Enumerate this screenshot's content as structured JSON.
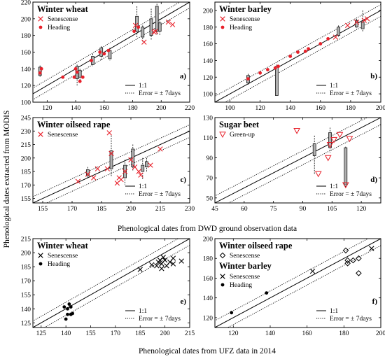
{
  "figure": {
    "xlabel_top": "Phenological dates from DWD ground observation data",
    "xlabel_bottom": "Phenological dates from UFZ data in 2014",
    "ylabel": "Phenological dates extracted from MODIS"
  },
  "legend_lines": {
    "one_to_one": "1:1",
    "error": "Error = ± 7days"
  },
  "colors": {
    "red": "#e8202a",
    "black": "#000000",
    "gray": "#b0b0b0"
  },
  "chart_data": [
    {
      "panel": "a)",
      "title": "Winter wheat",
      "type": "scatter",
      "xlim": [
        110,
        220
      ],
      "ylim": [
        100,
        220
      ],
      "xticks": [
        120,
        140,
        160,
        180,
        200,
        220
      ],
      "yticks": [
        100,
        120,
        140,
        160,
        180,
        200,
        220
      ],
      "error_days": 7,
      "series": [
        {
          "name": "Senescense",
          "marker": "x",
          "color": "#e8202a",
          "points": [
            [
              182,
              192
            ],
            [
              188,
              172
            ],
            [
              195,
              184
            ],
            [
              205,
              196
            ],
            [
              208,
              193
            ],
            [
              196,
              185
            ]
          ]
        },
        {
          "name": "Heading",
          "marker": "dot",
          "color": "#e8202a",
          "points": [
            [
              115,
              135
            ],
            [
              116,
              140
            ],
            [
              131,
              130
            ],
            [
              139,
              130
            ],
            [
              140,
              140
            ],
            [
              141,
              136
            ],
            [
              143,
              125
            ],
            [
              145,
              130
            ],
            [
              151,
              150
            ],
            [
              157,
              160
            ],
            [
              160,
              158
            ],
            [
              163,
              162
            ],
            [
              181,
              185
            ],
            [
              184,
              190
            ]
          ]
        }
      ],
      "boxes": [
        {
          "x": 115,
          "q1": 132,
          "q3": 142,
          "lo": 130,
          "hi": 144
        },
        {
          "x": 141,
          "q1": 128,
          "q3": 143,
          "lo": 120,
          "hi": 145
        },
        {
          "x": 143,
          "q1": 130,
          "q3": 138,
          "lo": 125,
          "hi": 140
        },
        {
          "x": 152,
          "q1": 145,
          "q3": 155,
          "lo": 143,
          "hi": 158
        },
        {
          "x": 158,
          "q1": 155,
          "q3": 165,
          "lo": 150,
          "hi": 167
        },
        {
          "x": 164,
          "q1": 152,
          "q3": 162,
          "lo": 150,
          "hi": 165
        },
        {
          "x": 183,
          "q1": 185,
          "q3": 203,
          "lo": 178,
          "hi": 215
        },
        {
          "x": 187,
          "q1": 178,
          "q3": 190,
          "lo": 172,
          "hi": 192
        },
        {
          "x": 193,
          "q1": 180,
          "q3": 200,
          "lo": 175,
          "hi": 212
        },
        {
          "x": 197,
          "q1": 185,
          "q3": 215,
          "lo": 180,
          "hi": 218
        },
        {
          "x": 199,
          "q1": 185,
          "q3": 195,
          "lo": 180,
          "hi": 200
        }
      ]
    },
    {
      "panel": "b)",
      "title": "Winter barley",
      "type": "scatter",
      "xlim": [
        90,
        200
      ],
      "ylim": [
        90,
        210
      ],
      "xticks": [
        100,
        120,
        140,
        160,
        180,
        200
      ],
      "yticks": [
        100,
        120,
        140,
        160,
        180,
        200
      ],
      "error_days": 7,
      "series": [
        {
          "name": "Senescense",
          "marker": "x",
          "color": "#e8202a",
          "points": [
            [
              170,
              168
            ],
            [
              178,
              182
            ],
            [
              184,
              186
            ],
            [
              189,
              188
            ],
            [
              191,
              190
            ]
          ]
        },
        {
          "name": "Heading",
          "marker": "dot",
          "color": "#e8202a",
          "points": [
            [
              112,
              118
            ],
            [
              120,
              125
            ],
            [
              125,
              129
            ],
            [
              130,
              131
            ],
            [
              132,
              133
            ],
            [
              140,
              145
            ],
            [
              145,
              150
            ],
            [
              150,
              151
            ],
            [
              152,
              154
            ],
            [
              160,
              160
            ],
            [
              165,
              166
            ]
          ]
        }
      ],
      "boxes": [
        {
          "x": 112,
          "q1": 113,
          "q3": 122,
          "lo": 111,
          "hi": 124
        },
        {
          "x": 131,
          "q1": 98,
          "q3": 133,
          "lo": 97,
          "hi": 135
        },
        {
          "x": 172,
          "q1": 170,
          "q3": 180,
          "lo": 168,
          "hi": 182
        },
        {
          "x": 184,
          "q1": 180,
          "q3": 188,
          "lo": 178,
          "hi": 190
        },
        {
          "x": 188,
          "q1": 178,
          "q3": 186,
          "lo": 175,
          "hi": 200
        }
      ]
    },
    {
      "panel": "c)",
      "title": "Winter oilseed rape",
      "type": "scatter",
      "xlim": [
        150,
        230
      ],
      "ylim": [
        150,
        245
      ],
      "xticks": [
        155,
        170,
        185,
        200,
        215,
        230
      ],
      "yticks": [
        155,
        170,
        185,
        200,
        215,
        230,
        245
      ],
      "error_days": 7,
      "series": [
        {
          "name": "Senescense",
          "marker": "x",
          "color": "#e8202a",
          "points": [
            [
              173,
              174
            ],
            [
              178,
              182
            ],
            [
              181,
              178
            ],
            [
              183,
              188
            ],
            [
              188,
              188
            ],
            [
              189,
              228
            ],
            [
              190,
              205
            ],
            [
              193,
              172
            ],
            [
              194,
              178
            ],
            [
              195,
              176
            ],
            [
              197,
              185
            ],
            [
              200,
              198
            ],
            [
              202,
              190
            ],
            [
              204,
              185
            ],
            [
              205,
              181
            ],
            [
              210,
              192
            ],
            [
              215,
              210
            ]
          ]
        }
      ],
      "boxes": [
        {
          "x": 178,
          "q1": 180,
          "q3": 187,
          "lo": 178,
          "hi": 190
        },
        {
          "x": 190,
          "q1": 188,
          "q3": 208,
          "lo": 180,
          "hi": 225
        },
        {
          "x": 197,
          "q1": 178,
          "q3": 192,
          "lo": 170,
          "hi": 198
        },
        {
          "x": 201,
          "q1": 190,
          "q3": 210,
          "lo": 185,
          "hi": 215
        },
        {
          "x": 206,
          "q1": 185,
          "q3": 192,
          "lo": 176,
          "hi": 200
        },
        {
          "x": 208,
          "q1": 190,
          "q3": 196,
          "lo": 185,
          "hi": 200
        }
      ]
    },
    {
      "panel": "d)",
      "title": "Sugar beet",
      "type": "scatter",
      "xlim": [
        45,
        130
      ],
      "ylim": [
        45,
        130
      ],
      "xticks": [
        45,
        60,
        75,
        90,
        105,
        120
      ],
      "yticks": [
        50,
        70,
        90,
        110,
        130
      ],
      "error_days": 7,
      "series": [
        {
          "name": "Green-up",
          "marker": "triangle-down",
          "color": "#e8202a",
          "points": [
            [
              87,
              117
            ],
            [
              98,
              74
            ],
            [
              103,
              90
            ],
            [
              104,
              103
            ],
            [
              106,
              108
            ],
            [
              109,
              113
            ],
            [
              112,
              63
            ],
            [
              114,
              109
            ]
          ]
        }
      ],
      "boxes": [
        {
          "x": 96,
          "q1": 92,
          "q3": 104,
          "lo": 73,
          "hi": 112
        },
        {
          "x": 104,
          "q1": 100,
          "q3": 115,
          "lo": 95,
          "hi": 120
        },
        {
          "x": 112,
          "q1": 63,
          "q3": 100,
          "lo": 60,
          "hi": 101
        }
      ]
    },
    {
      "panel": "e)",
      "title": "Winter wheat",
      "type": "scatter",
      "xlim": [
        120,
        215
      ],
      "ylim": [
        120,
        215
      ],
      "xticks": [
        125,
        140,
        155,
        170,
        185,
        200,
        215
      ],
      "yticks": [
        125,
        140,
        155,
        170,
        185,
        200,
        215
      ],
      "error_days": 7,
      "series": [
        {
          "name": "Senescense",
          "marker": "x",
          "color": "#000000",
          "points": [
            [
              185,
              182
            ],
            [
              192,
              187
            ],
            [
              195,
              186
            ],
            [
              196,
              190
            ],
            [
              197,
              192
            ],
            [
              198,
              188
            ],
            [
              198,
              183
            ],
            [
              199,
              195
            ],
            [
              200,
              192
            ],
            [
              201,
              186
            ],
            [
              203,
              190
            ],
            [
              205,
              188
            ],
            [
              205,
              194
            ],
            [
              210,
              191
            ]
          ]
        },
        {
          "name": "Heading",
          "marker": "dot",
          "color": "#000000",
          "points": [
            [
              139,
              142
            ],
            [
              140,
              129
            ],
            [
              141,
              134
            ],
            [
              141,
              140
            ],
            [
              142,
              145
            ],
            [
              143,
              142
            ],
            [
              143,
              134
            ],
            [
              144,
              135
            ]
          ]
        }
      ],
      "boxes": []
    },
    {
      "panel": "f)",
      "title": "Winter oilseed rape",
      "subtitle": "Winter barley",
      "type": "scatter",
      "xlim": [
        110,
        200
      ],
      "ylim": [
        110,
        200
      ],
      "xticks": [
        120,
        140,
        160,
        180,
        200
      ],
      "yticks": [
        120,
        140,
        160,
        180,
        200
      ],
      "error_days": 7,
      "series": [
        {
          "name": "Senescense",
          "group": "Winter oilseed rape",
          "marker": "diamond",
          "color": "#000000",
          "points": [
            [
              181,
              188
            ],
            [
              182,
              175
            ],
            [
              182,
              178
            ],
            [
              185,
              178
            ],
            [
              188,
              180
            ],
            [
              188,
              165
            ]
          ]
        },
        {
          "name": "Senescense",
          "group": "Winter barley",
          "marker": "x",
          "color": "#000000",
          "points": [
            [
              163,
              167
            ],
            [
              195,
              190
            ]
          ]
        },
        {
          "name": "Heading",
          "group": "Winter barley",
          "marker": "dot",
          "color": "#000000",
          "points": [
            [
              119,
              125
            ],
            [
              138,
              145
            ]
          ]
        }
      ],
      "boxes": []
    }
  ]
}
